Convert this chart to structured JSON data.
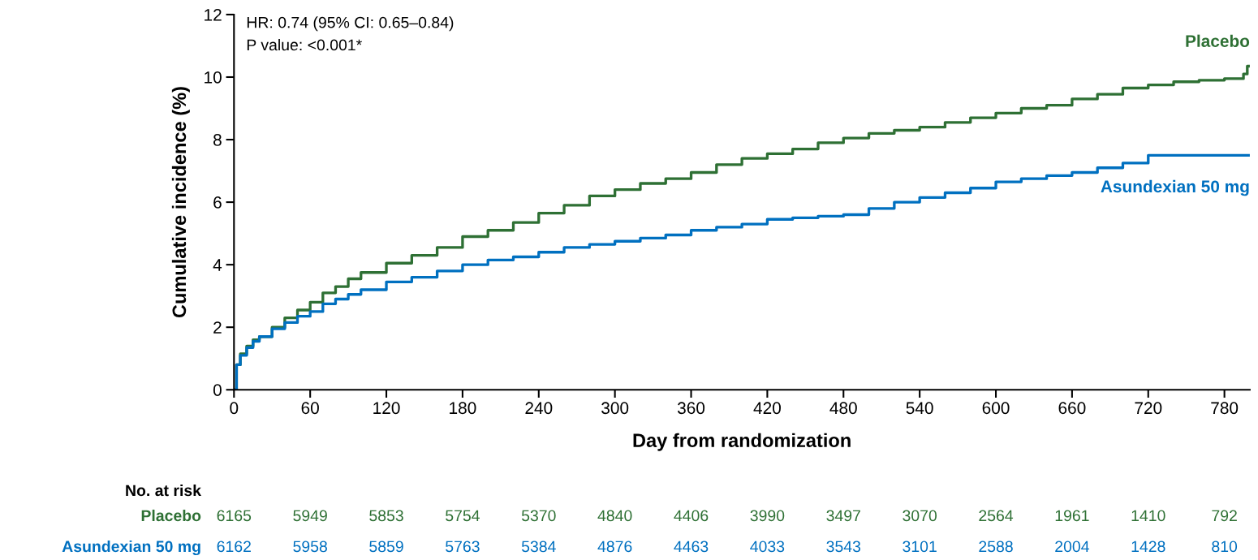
{
  "chart_data": {
    "type": "step",
    "xlabel": "Day from randomization",
    "ylabel": "Cumulative incidence (%)",
    "xlim": [
      0,
      800
    ],
    "xticks": [
      0,
      60,
      120,
      180,
      240,
      300,
      360,
      420,
      480,
      540,
      600,
      660,
      720,
      780
    ],
    "ylim": [
      0,
      12
    ],
    "yticks": [
      0,
      2,
      4,
      6,
      8,
      10,
      12
    ],
    "grid": false,
    "legend": false,
    "annotations": [
      "HR: 0.74 (95% CI: 0.65–0.84)",
      "P value: <0.001*",
      "No. at risk",
      "6165 5949 5853 5754 5370 4840 4406 3990 3497 3070 2564 1961 1410 792",
      "6162 5958 5859 5763 5384 4876 4463 4033 3543 3101 2588 2004 1428 810"
    ],
    "series": [
      {
        "name": "Placebo",
        "color": "#2e7034",
        "x": [
          0,
          2,
          5,
          10,
          15,
          20,
          30,
          40,
          50,
          60,
          70,
          80,
          90,
          100,
          120,
          140,
          160,
          180,
          200,
          220,
          240,
          260,
          280,
          300,
          320,
          340,
          360,
          380,
          400,
          420,
          440,
          460,
          480,
          500,
          520,
          540,
          560,
          580,
          600,
          620,
          640,
          660,
          680,
          700,
          720,
          740,
          760,
          780,
          795,
          798,
          800
        ],
        "values": [
          0,
          0.8,
          1.15,
          1.4,
          1.6,
          1.7,
          2.0,
          2.3,
          2.55,
          2.8,
          3.1,
          3.3,
          3.55,
          3.75,
          4.05,
          4.3,
          4.55,
          4.9,
          5.1,
          5.35,
          5.65,
          5.9,
          6.2,
          6.4,
          6.6,
          6.75,
          6.95,
          7.2,
          7.4,
          7.55,
          7.7,
          7.9,
          8.05,
          8.2,
          8.3,
          8.4,
          8.55,
          8.7,
          8.85,
          9.0,
          9.1,
          9.3,
          9.45,
          9.65,
          9.75,
          9.85,
          9.9,
          9.95,
          10.1,
          10.35,
          10.35
        ]
      },
      {
        "name": "Asundexian 50 mg",
        "color": "#0070c0",
        "x": [
          0,
          2,
          5,
          10,
          15,
          20,
          30,
          40,
          50,
          60,
          70,
          80,
          90,
          100,
          120,
          140,
          160,
          180,
          200,
          220,
          240,
          260,
          280,
          300,
          320,
          340,
          360,
          380,
          400,
          420,
          440,
          460,
          480,
          500,
          520,
          540,
          560,
          580,
          600,
          620,
          640,
          660,
          680,
          700,
          720,
          800
        ],
        "values": [
          0,
          0.8,
          1.1,
          1.35,
          1.55,
          1.7,
          1.95,
          2.15,
          2.35,
          2.5,
          2.75,
          2.9,
          3.05,
          3.2,
          3.45,
          3.6,
          3.8,
          4.0,
          4.15,
          4.25,
          4.4,
          4.55,
          4.65,
          4.75,
          4.85,
          4.95,
          5.1,
          5.2,
          5.3,
          5.45,
          5.5,
          5.55,
          5.6,
          5.8,
          6.0,
          6.15,
          6.3,
          6.45,
          6.65,
          6.75,
          6.85,
          6.95,
          7.1,
          7.25,
          7.5,
          7.5
        ]
      }
    ]
  }
}
